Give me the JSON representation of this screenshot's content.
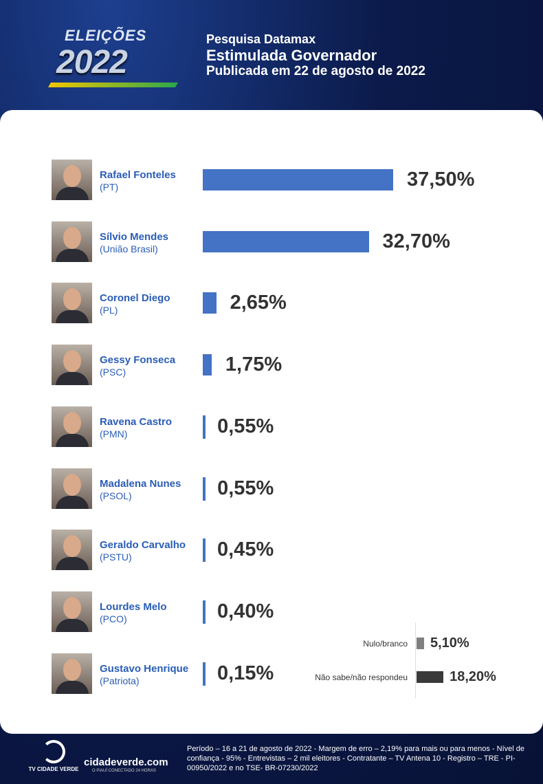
{
  "header": {
    "logo_text_top": "ELEIÇÕES",
    "logo_text_bottom": "2022",
    "line1": "Pesquisa Datamax",
    "line2": "Estimulada Governador",
    "line3": "Publicada em 22 de agosto de 2022"
  },
  "colors": {
    "bar": "#4472c4",
    "nulo_bar": "#7f7f7f",
    "nao_sabe_bar": "#3a3a3a",
    "name_text": "#2a5db5"
  },
  "chart_data": {
    "type": "bar",
    "orientation": "horizontal",
    "categories": [
      "Rafael Fonteles",
      "Sílvio Mendes",
      "Coronel Diego",
      "Gessy Fonseca",
      "Ravena Castro",
      "Madalena Nunes",
      "Geraldo Carvalho",
      "Lourdes Melo",
      "Gustavo Henrique"
    ],
    "parties": [
      "(PT)",
      "(União Brasil)",
      "(PL)",
      "(PSC)",
      "(PMN)",
      "(PSOL)",
      "(PSTU)",
      "(PCO)",
      "(Patriota)"
    ],
    "values": [
      37.5,
      32.7,
      2.65,
      1.75,
      0.55,
      0.55,
      0.45,
      0.4,
      0.15
    ],
    "labels": [
      "37,50%",
      "32,70%",
      "2,65%",
      "1,75%",
      "0,55%",
      "0,55%",
      "0,45%",
      "0,40%",
      "0,15%"
    ],
    "others": [
      {
        "label": "Nulo/branco",
        "value": 5.1,
        "text": "5,10%"
      },
      {
        "label": "Não sabe/não respondeu",
        "value": 18.2,
        "text": "18,20%"
      }
    ]
  },
  "footer": {
    "text": "Período – 16 a 21 de agosto de 2022 - Margem de erro – 2,19% para mais ou para menos - Nível de confiança - 95% - Entrevistas – 2 mil eleitores - Contratante – TV Antena 10 - Registro – TRE - PI-00950/2022 e no TSE- BR-07230/2022",
    "tv_logo": "TV CIDADE VERDE",
    "site_logo": "cidadeverde.com",
    "site_tagline": "O PIAUÍ CONECTADO 24 HORAS"
  }
}
